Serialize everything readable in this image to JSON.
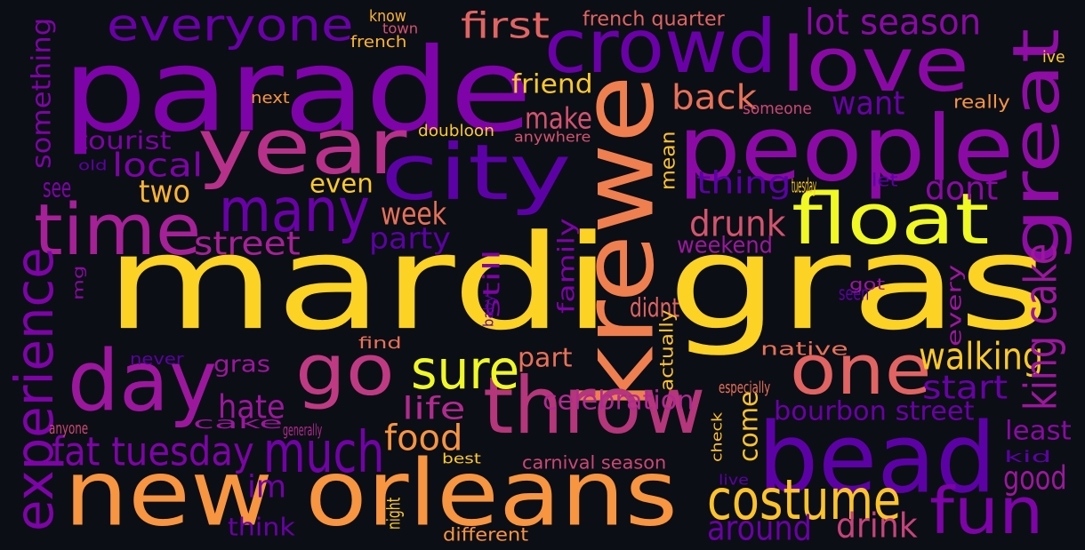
{
  "words": [
    {
      "text": "mardi gras",
      "color": "#fcd225"
    },
    {
      "text": "parade",
      "color": "#7e03a8"
    },
    {
      "text": "new orleans",
      "color": "#f89540"
    },
    {
      "text": "krewe",
      "color": "#f07f4f"
    },
    {
      "text": "people",
      "color": "#8b0aa5"
    },
    {
      "text": "bead",
      "color": "#5c01a6"
    },
    {
      "text": "year",
      "color": "#b7318a"
    },
    {
      "text": "crowd",
      "color": "#6a00a8"
    },
    {
      "text": "love",
      "color": "#8a09a5"
    },
    {
      "text": "city",
      "color": "#5c01a6"
    },
    {
      "text": "day",
      "color": "#9c179e"
    },
    {
      "text": "go",
      "color": "#c03a83"
    },
    {
      "text": "throw",
      "color": "#b5367a"
    },
    {
      "text": "time",
      "color": "#a62098"
    },
    {
      "text": "many",
      "color": "#6a00a8"
    },
    {
      "text": "float",
      "color": "#f0f921"
    },
    {
      "text": "great",
      "color": "#8f0da4"
    },
    {
      "text": "one",
      "color": "#e16462"
    },
    {
      "text": "fun",
      "color": "#7e03a8"
    },
    {
      "text": "costume",
      "color": "#fdc328"
    },
    {
      "text": "much",
      "color": "#7201a8"
    },
    {
      "text": "sure",
      "color": "#f0f921"
    },
    {
      "text": "experience",
      "color": "#7e03a8"
    },
    {
      "text": "everyone",
      "color": "#6a00a8"
    },
    {
      "text": "lot season",
      "color": "#8b0aa5"
    },
    {
      "text": "first",
      "color": "#e16462"
    },
    {
      "text": "fat tuesday",
      "color": "#7e03a8"
    },
    {
      "text": "walking",
      "color": "#fdca26"
    },
    {
      "text": "king cake",
      "color": "#9c179e"
    },
    {
      "text": "food",
      "color": "#f89540"
    },
    {
      "text": "drunk",
      "color": "#d5536f"
    },
    {
      "text": "back",
      "color": "#e97158"
    },
    {
      "text": "local",
      "color": "#7e03a8"
    },
    {
      "text": "street",
      "color": "#a62098"
    },
    {
      "text": "thing",
      "color": "#5c01a6"
    },
    {
      "text": "party",
      "color": "#5c01a6"
    },
    {
      "text": "week",
      "color": "#e97158"
    },
    {
      "text": "make",
      "color": "#d5536f"
    },
    {
      "text": "want",
      "color": "#6a00a8"
    },
    {
      "text": "dont",
      "color": "#8b0aa5"
    },
    {
      "text": "start",
      "color": "#6a00a8"
    },
    {
      "text": "life",
      "color": "#b12a90"
    },
    {
      "text": "hate",
      "color": "#9c179e"
    },
    {
      "text": "im",
      "color": "#7201a8"
    },
    {
      "text": "come",
      "color": "#fdc328"
    },
    {
      "text": "bourbon street",
      "color": "#6a00a8"
    },
    {
      "text": "around",
      "color": "#6a00a8"
    },
    {
      "text": "drink",
      "color": "#c8437b"
    },
    {
      "text": "good",
      "color": "#9c179e"
    },
    {
      "text": "least",
      "color": "#8b0aa5"
    },
    {
      "text": "two",
      "color": "#fdb42f"
    },
    {
      "text": "even",
      "color": "#fdca26"
    },
    {
      "text": "friend",
      "color": "#fdca26"
    },
    {
      "text": "something",
      "color": "#7e03a8"
    },
    {
      "text": "tourist",
      "color": "#7e03a8"
    },
    {
      "text": "see",
      "color": "#7e03a8"
    },
    {
      "text": "family",
      "color": "#7e03a8"
    },
    {
      "text": "still",
      "color": "#7e03a8"
    },
    {
      "text": "didnt",
      "color": "#e16462"
    },
    {
      "text": "part",
      "color": "#e97158"
    },
    {
      "text": "celebration",
      "color": "#b12a90"
    },
    {
      "text": "every",
      "color": "#9c179e"
    },
    {
      "text": "mean",
      "color": "#fdc328"
    },
    {
      "text": "weekend",
      "color": "#9c179e"
    },
    {
      "text": "think",
      "color": "#6a00a8"
    },
    {
      "text": "gras",
      "color": "#9c179e"
    },
    {
      "text": "check",
      "color": "#fdc328"
    },
    {
      "text": "actually",
      "color": "#fdc328"
    },
    {
      "text": "carnival season",
      "color": "#cc4778"
    },
    {
      "text": "different",
      "color": "#f89540"
    },
    {
      "text": "know",
      "color": "#fdb42f"
    },
    {
      "text": "town",
      "color": "#d5536f"
    },
    {
      "text": "french",
      "color": "#fdb42f"
    },
    {
      "text": "french quarter",
      "color": "#e16462"
    },
    {
      "text": "ive",
      "color": "#fdca26"
    },
    {
      "text": "next",
      "color": "#f89540"
    },
    {
      "text": "someone",
      "color": "#cc4778"
    },
    {
      "text": "really",
      "color": "#f89540"
    },
    {
      "text": "doubloon",
      "color": "#fdca26"
    },
    {
      "text": "anywhere",
      "color": "#d5536f"
    },
    {
      "text": "old",
      "color": "#5c01a6"
    },
    {
      "text": "tuesday",
      "color": "#fdca26"
    },
    {
      "text": "let",
      "color": "#5c01a6"
    },
    {
      "text": "mg",
      "color": "#8b0aa5"
    },
    {
      "text": "baby",
      "color": "#5c01a6"
    },
    {
      "text": "seen",
      "color": "#5c01a6"
    },
    {
      "text": "got",
      "color": "#9c179e"
    },
    {
      "text": "find",
      "color": "#e97158"
    },
    {
      "text": "never",
      "color": "#5c01a6"
    },
    {
      "text": "native",
      "color": "#e97158"
    },
    {
      "text": "especially",
      "color": "#e97158"
    },
    {
      "text": "anyone",
      "color": "#cc4778"
    },
    {
      "text": "cake",
      "color": "#9c179e"
    },
    {
      "text": "generally",
      "color": "#b12a90"
    },
    {
      "text": "best",
      "color": "#fdca26"
    },
    {
      "text": "live",
      "color": "#5c01a6"
    },
    {
      "text": "kid",
      "color": "#5c01a6"
    },
    {
      "text": "night",
      "color": "#fdca26"
    },
    {
      "text": "youre",
      "color": "#cc4778"
    }
  ]
}
